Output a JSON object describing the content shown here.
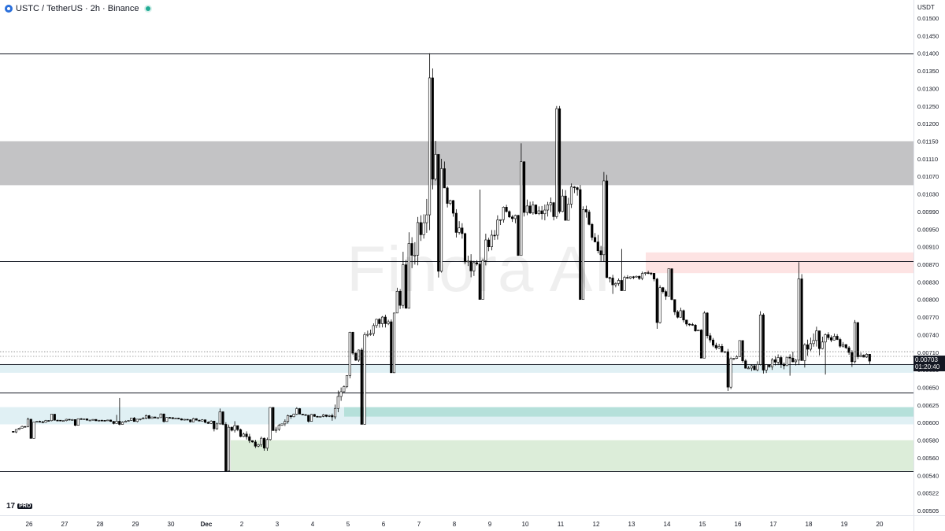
{
  "header": {
    "symbol": "USTC",
    "separator": "/",
    "quote": "TetherUS · 2h · Binance"
  },
  "axis_unit": "USDT",
  "watermark": "Finora AI",
  "tv_logo": {
    "mark": "17",
    "tag": "PRO"
  },
  "last_price": {
    "value": "0.00703",
    "countdown": "01:20:40"
  },
  "colors": {
    "up": "#ffffff",
    "down": "#000000",
    "wick": "#000000",
    "resistance_zone": "#c3c3c5",
    "supply_zone": "#fde3e3",
    "support_zone_light": "#e0f0f4",
    "support_zone_teal": "#b5e0da",
    "demand_zone": "#dcedd9"
  },
  "chart_data": {
    "type": "candlestick",
    "timeframe": "2h",
    "x_tick_labels": [
      "26",
      "27",
      "28",
      "29",
      "30",
      "Dec",
      "2",
      "3",
      "4",
      "5",
      "6",
      "7",
      "8",
      "9",
      "10",
      "11",
      "12",
      "13",
      "14",
      "15",
      "16",
      "17",
      "18",
      "19",
      "20"
    ],
    "y_tick_labels": [
      "0.01500",
      "0.01450",
      "0.01400",
      "0.01350",
      "0.01300",
      "0.01250",
      "0.01200",
      "0.01150",
      "0.01110",
      "0.01070",
      "0.01030",
      "0.00990",
      "0.00950",
      "0.00910",
      "0.00870",
      "0.00830",
      "0.00800",
      "0.00770",
      "0.00740",
      "0.00710",
      "0.00680",
      "0.00650",
      "0.00625",
      "0.00600",
      "0.00580",
      "0.00560",
      "0.00540",
      "0.00522",
      "0.00505"
    ],
    "ylim": [
      0.00505,
      0.015
    ],
    "daily_ohlc": [
      [
        "26",
        0.0059,
        0.00607,
        0.00582,
        0.00603
      ],
      [
        "27",
        0.00603,
        0.00612,
        0.00596,
        0.00605
      ],
      [
        "28",
        0.00605,
        0.00611,
        0.00598,
        0.00602
      ],
      [
        "29",
        0.00602,
        0.00635,
        0.00597,
        0.00608
      ],
      [
        "30",
        0.00608,
        0.00613,
        0.006,
        0.00604
      ],
      [
        "Dec",
        0.00604,
        0.0062,
        0.0059,
        0.00598
      ],
      [
        "2",
        0.00598,
        0.00602,
        0.00545,
        0.00575
      ],
      [
        "3",
        0.00575,
        0.00622,
        0.00568,
        0.00612
      ],
      [
        "4",
        0.00612,
        0.00622,
        0.006,
        0.0061
      ],
      [
        "5",
        0.0061,
        0.00745,
        0.00598,
        0.0074
      ],
      [
        "6",
        0.0074,
        0.0082,
        0.00675,
        0.0079
      ],
      [
        "7",
        0.0079,
        0.014,
        0.00785,
        0.0112
      ],
      [
        "8",
        0.0112,
        0.0111,
        0.0084,
        0.00855
      ],
      [
        "9",
        0.00855,
        0.0104,
        0.008,
        0.0099
      ],
      [
        "10",
        0.0099,
        0.01145,
        0.0089,
        0.00985
      ],
      [
        "11",
        0.00985,
        0.0125,
        0.0097,
        0.0104
      ],
      [
        "12",
        0.0104,
        0.0108,
        0.008,
        0.00825
      ],
      [
        "13",
        0.00825,
        0.00905,
        0.00815,
        0.0085
      ],
      [
        "14",
        0.0085,
        0.0086,
        0.0075,
        0.00765
      ],
      [
        "15",
        0.00765,
        0.0078,
        0.007,
        0.0072
      ],
      [
        "16",
        0.0072,
        0.0073,
        0.00645,
        0.0068
      ],
      [
        "17",
        0.0068,
        0.0078,
        0.0067,
        0.007
      ],
      [
        "18",
        0.007,
        0.00875,
        0.00672,
        0.0074
      ],
      [
        "19",
        0.0074,
        0.00765,
        0.00685,
        0.00705
      ],
      [
        "20",
        0.00705,
        0.00725,
        0.0069,
        0.00703
      ]
    ],
    "horizontal_lines": [
      0.014,
      0.00877,
      0.0069,
      0.00643,
      0.00545
    ],
    "zones": [
      {
        "name": "resistance",
        "from": 0.0105,
        "to": 0.0115
      },
      {
        "name": "supply",
        "from": 0.0085,
        "to": 0.00897
      },
      {
        "name": "support",
        "from": 0.00675,
        "to": 0.0069
      },
      {
        "name": "support-2",
        "from": 0.00598,
        "to": 0.00622
      },
      {
        "name": "demand",
        "from": 0.00545,
        "to": 0.0058
      }
    ]
  }
}
